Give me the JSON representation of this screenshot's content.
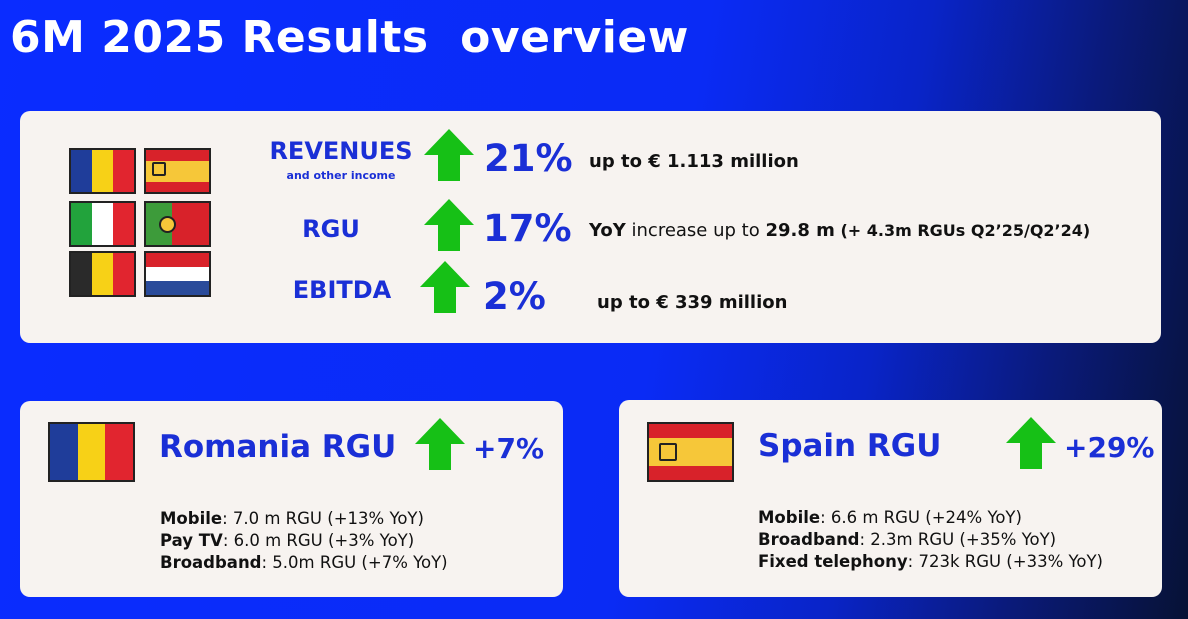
{
  "page": {
    "title": "6M 2025 Results  overview"
  },
  "colors": {
    "accent_blue": "#1a2fd6",
    "arrow_green": "#16c016",
    "card_bg": "#f7f3f0"
  },
  "flags": [
    "romania-flag",
    "spain-flag",
    "italy-flag",
    "portugal-flag",
    "belgium-flag",
    "netherlands-flag"
  ],
  "metrics": [
    {
      "label": "REVENUES",
      "sublabel": "and other income",
      "pct": "21%",
      "desc": "up to € 1.113 million"
    },
    {
      "label": "RGU",
      "pct": "17%",
      "desc_strong1": "YoY",
      "desc_mid": " increase up to ",
      "desc_strong2": "29.8 m",
      "desc_tail": " (+ 4.3m RGUs Q2’25/Q2’24)"
    },
    {
      "label": "EBITDA",
      "pct": "2%",
      "desc": "up to € 339 million"
    }
  ],
  "romania": {
    "title": "Romania RGU",
    "pct": "+7%",
    "lines": [
      {
        "label": "Mobile",
        "value": ": 7.0 m RGU (+13% YoY)"
      },
      {
        "label": "Pay TV",
        "value": ": 6.0 m RGU (+3% YoY)"
      },
      {
        "label": "Broadband",
        "value": ": 5.0m RGU (+7% YoY)"
      }
    ]
  },
  "spain": {
    "title": "Spain RGU",
    "pct": "+29%",
    "lines": [
      {
        "label": "Mobile",
        "value": ": 6.6 m RGU (+24% YoY)"
      },
      {
        "label": "Broadband",
        "value": ": 2.3m RGU (+35% YoY)"
      },
      {
        "label": "Fixed telephony",
        "value": ": 723k RGU (+33% YoY)"
      }
    ]
  }
}
